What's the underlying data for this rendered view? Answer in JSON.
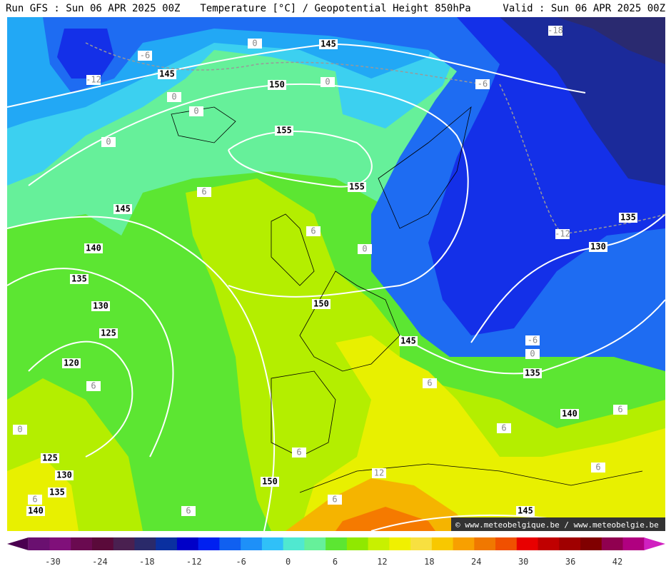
{
  "header": {
    "run": "Run GFS : Sun 06 APR 2025 00Z",
    "title": "Temperature [°C] / Geopotential Height 850hPa",
    "valid": "Valid : Sun 06 APR 2025 00Z"
  },
  "height_labels": [
    145,
    145,
    150,
    155,
    155,
    145,
    140,
    135,
    130,
    125,
    120,
    125,
    130,
    135,
    140,
    150,
    145,
    150,
    135,
    130,
    135,
    140,
    145
  ],
  "temperature_labels": [
    0,
    -6,
    -12,
    0,
    0,
    0,
    0,
    -18,
    -6,
    6,
    6,
    0,
    -12,
    -6,
    0,
    6,
    0,
    6,
    6,
    6,
    6,
    12,
    6,
    6,
    6,
    6
  ],
  "watermark": "© www.meteobelgique.be / www.meteobelgie.be",
  "colorbar": {
    "ticks": [
      -30,
      -24,
      -18,
      -12,
      -6,
      0,
      6,
      12,
      18,
      24,
      30,
      36,
      42
    ],
    "colors": [
      "#4a0050",
      "#6a1070",
      "#80107a",
      "#6a0a50",
      "#5a0a3a",
      "#4a2050",
      "#2a2a6a",
      "#0a30a0",
      "#0000c8",
      "#0020f0",
      "#1060f0",
      "#1e90f8",
      "#30c0f8",
      "#50e8d0",
      "#66f09a",
      "#5ce632",
      "#90e800",
      "#c8f000",
      "#f0f000",
      "#f8e040",
      "#f8c800",
      "#f8a000",
      "#f07800",
      "#f05000",
      "#e80000",
      "#c00000",
      "#a00000",
      "#800000",
      "#900050",
      "#b00080",
      "#d020c0"
    ]
  }
}
